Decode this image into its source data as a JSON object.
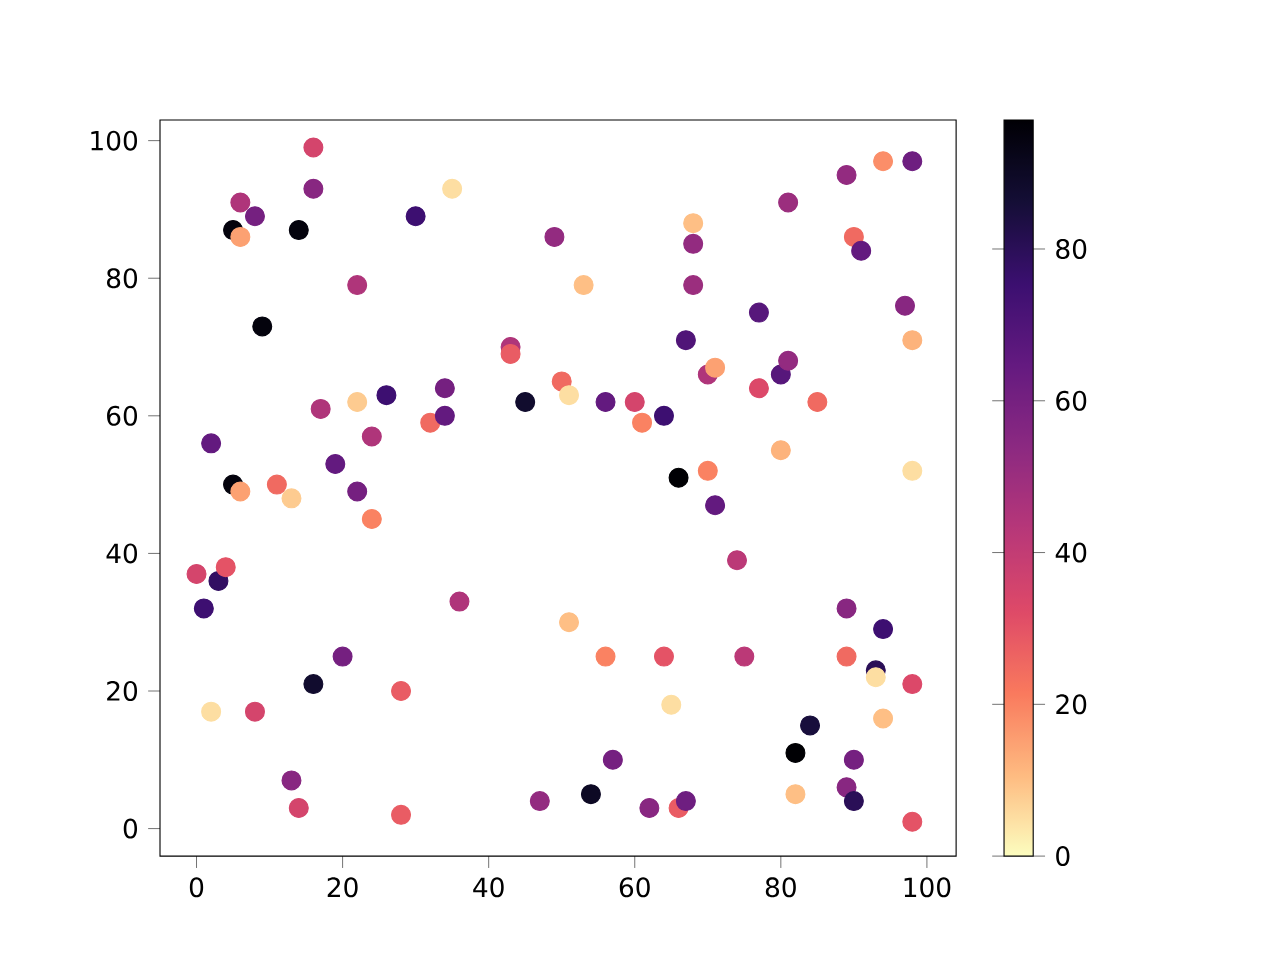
{
  "chart_data": {
    "type": "scatter",
    "x": [
      0,
      1,
      2,
      2,
      3,
      4,
      5,
      6,
      6,
      8,
      5,
      6,
      8,
      9,
      11,
      13,
      13,
      14,
      14,
      16,
      16,
      16,
      17,
      19,
      20,
      22,
      22,
      22,
      24,
      24,
      26,
      28,
      28,
      30,
      32,
      34,
      34,
      35,
      36,
      43,
      43,
      45,
      47,
      49,
      50,
      51,
      51,
      53,
      54,
      56,
      56,
      57,
      60,
      61,
      62,
      64,
      64,
      65,
      66,
      66,
      67,
      67,
      68,
      68,
      68,
      70,
      70,
      71,
      71,
      74,
      75,
      77,
      77,
      80,
      80,
      81,
      81,
      82,
      82,
      84,
      85,
      89,
      89,
      89,
      89,
      90,
      90,
      90,
      91,
      93,
      93,
      94,
      94,
      94,
      97,
      98,
      98,
      98,
      98,
      98
    ],
    "values": [
      37,
      32,
      56,
      17,
      36,
      38,
      87,
      86,
      91,
      89,
      50,
      49,
      17,
      73,
      50,
      48,
      7,
      87,
      3,
      99,
      93,
      21,
      61,
      53,
      25,
      79,
      62,
      49,
      57,
      45,
      63,
      20,
      2,
      89,
      59,
      64,
      60,
      93,
      33,
      70,
      69,
      62,
      4,
      86,
      65,
      63,
      30,
      79,
      5,
      62,
      25,
      10,
      62,
      59,
      3,
      60,
      25,
      18,
      51,
      3,
      4,
      71,
      88,
      85,
      79,
      66,
      52,
      67,
      47,
      39,
      25,
      75,
      64,
      66,
      55,
      68,
      91,
      11,
      5,
      15,
      62,
      95,
      32,
      25,
      6,
      86,
      10,
      4,
      84,
      23,
      22,
      29,
      97,
      16,
      76,
      97,
      71,
      52,
      21,
      1
    ],
    "cvalues": [
      35,
      75,
      65,
      5,
      78,
      30,
      95,
      15,
      45,
      60,
      95,
      15,
      35,
      95,
      25,
      8,
      55,
      95,
      35,
      35,
      55,
      88,
      45,
      65,
      60,
      45,
      8,
      60,
      45,
      20,
      75,
      28,
      28,
      75,
      25,
      60,
      65,
      5,
      45,
      45,
      28,
      88,
      52,
      52,
      25,
      5,
      10,
      10,
      90,
      65,
      20,
      60,
      35,
      20,
      55,
      75,
      30,
      5,
      97,
      28,
      62,
      70,
      10,
      52,
      50,
      45,
      20,
      15,
      65,
      42,
      42,
      68,
      33,
      68,
      12,
      52,
      50,
      97,
      10,
      85,
      25,
      52,
      55,
      25,
      55,
      25,
      60,
      80,
      65,
      80,
      5,
      75,
      18,
      10,
      55,
      62,
      12,
      5,
      33,
      30
    ],
    "xlim": [
      -5,
      104
    ],
    "ylim": [
      -4,
      103
    ],
    "xticks": [
      0,
      20,
      40,
      60,
      80,
      100
    ],
    "yticks": [
      0,
      20,
      40,
      60,
      80,
      100
    ],
    "clim": [
      0,
      97
    ],
    "cticks": [
      0,
      20,
      40,
      60,
      80
    ]
  }
}
